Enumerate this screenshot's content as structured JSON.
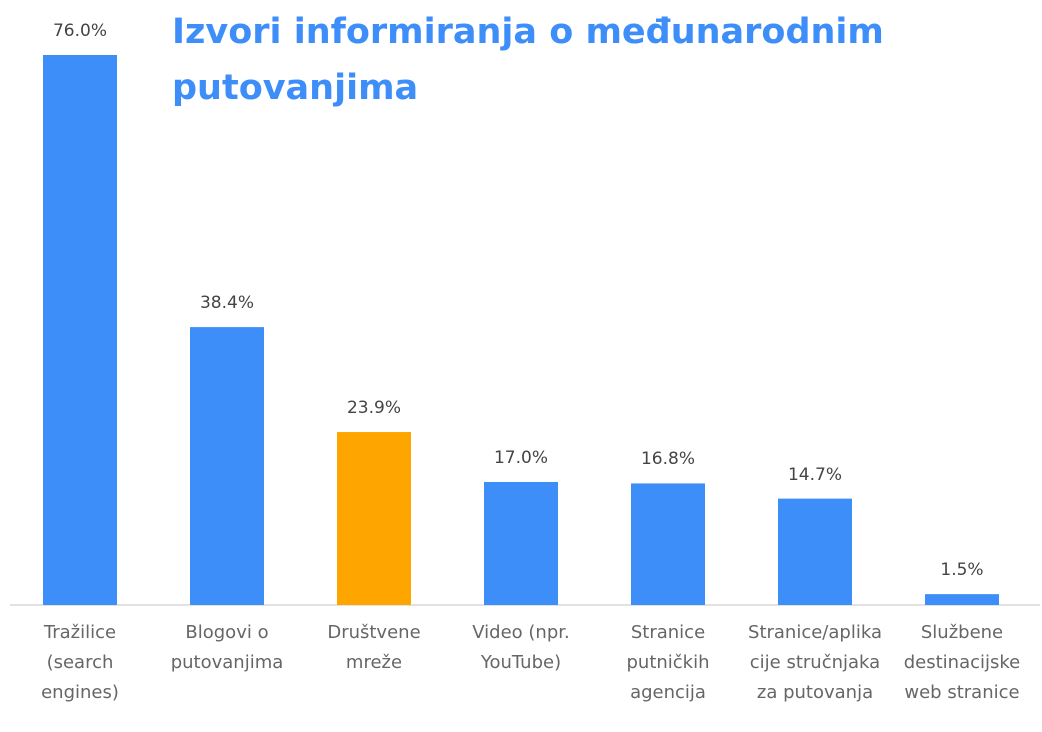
{
  "chart_data": {
    "type": "bar",
    "title": "Izvori informiranja o međunarodnim putovanjima",
    "categories": [
      "Tražilice (search engines)",
      "Blogovi o putovanjima",
      "Društvene mreže",
      "Video (npr. YouTube)",
      "Stranice putničkih agencija",
      "Stranice/aplikacije stručnjaka za putovanja",
      "Službene destinacijske web stranice"
    ],
    "values": [
      76.0,
      38.4,
      23.9,
      17.0,
      16.8,
      14.7,
      1.5
    ],
    "value_labels": [
      "76.0%",
      "38.4%",
      "23.9%",
      "17.0%",
      "16.8%",
      "14.7%",
      "1.5%"
    ],
    "colors": [
      "#3d8ef8",
      "#3d8ef8",
      "#ffa500",
      "#3d8ef8",
      "#3d8ef8",
      "#3d8ef8",
      "#3d8ef8"
    ]
  }
}
